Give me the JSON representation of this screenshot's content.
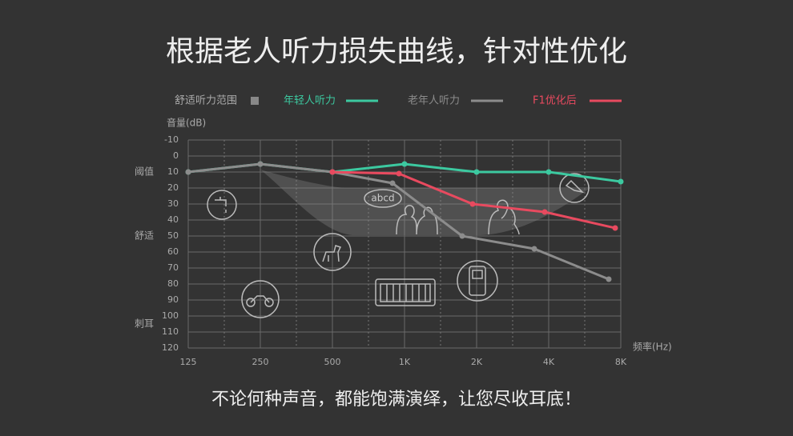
{
  "chart_data": {
    "type": "line",
    "title": "根据老人听力损失曲线，针对性优化",
    "subtitle": "不论何种声音，都能饱满演绎，让您尽收耳底！",
    "y_label": "音量(dB)",
    "x_label": "频率(Hz)",
    "comfort_range_label": "舒适听力范围",
    "comfort_range_color": "#888888",
    "icon_text": "abcd",
    "annotations": [
      {
        "text": "阈值",
        "y": 10
      },
      {
        "text": "舒适",
        "y": 50
      },
      {
        "text": "刺耳",
        "y": 105
      }
    ],
    "xlim": [
      125,
      8000
    ],
    "log_x": true,
    "xticks": [
      125,
      250,
      500,
      {
        "value": 1000,
        "label": "1K"
      },
      {
        "value": 2000,
        "label": "2K"
      },
      {
        "value": 4000,
        "label": "4K"
      },
      {
        "value": 8000,
        "label": "8K"
      }
    ],
    "ylim": [
      -10,
      120
    ],
    "y_reversed": true,
    "yticks": [
      -10,
      0,
      10,
      20,
      30,
      40,
      50,
      60,
      70,
      80,
      90,
      100,
      110,
      120
    ],
    "grid": true,
    "series": [
      {
        "name": "年轻人听力",
        "color": "#3cc9a0",
        "x": [
          125,
          250,
          500,
          1000,
          2000,
          4000,
          8000
        ],
        "values": [
          10,
          5,
          10,
          5,
          10,
          10,
          16
        ]
      },
      {
        "name": "老年人听力",
        "color": "#8c8c8c",
        "x": [
          125,
          250,
          500,
          891,
          1741,
          3482,
          7127
        ],
        "values": [
          10,
          5,
          10,
          17,
          50,
          58,
          77
        ]
      },
      {
        "name": "F1优化后",
        "color": "#e84a5f",
        "x": [
          500,
          948,
          1925,
          3850,
          7580
        ],
        "values": [
          10,
          11,
          30,
          35,
          45
        ]
      }
    ]
  }
}
